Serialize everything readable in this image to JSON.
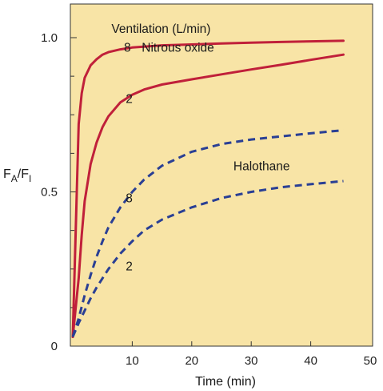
{
  "chart_data": {
    "type": "line",
    "xlabel": "Time (min)",
    "ylabel_main": "F",
    "ylabel_sub_a": "A",
    "ylabel_slash": "/F",
    "ylabel_sub_i": "I",
    "xlim": [
      0,
      50
    ],
    "ylim": [
      0,
      1.0
    ],
    "x_ticks": [
      {
        "value": 10,
        "label": "10"
      },
      {
        "value": 20,
        "label": "20"
      },
      {
        "value": 30,
        "label": "30"
      },
      {
        "value": 40,
        "label": "40"
      },
      {
        "value": 50,
        "label": "50"
      }
    ],
    "y_ticks": [
      {
        "value": 0,
        "label": "0"
      },
      {
        "value": 0.5,
        "label": "0.5"
      },
      {
        "value": 1.0,
        "label": "1.0"
      }
    ],
    "y_minor_ticks": [
      0.125,
      0.25,
      0.375,
      0.625,
      0.75,
      0.875
    ],
    "grid": false,
    "background_color": "#f8e4a6",
    "series": [
      {
        "label": "8",
        "style": "solid",
        "color": "#c0203a",
        "x": [
          0,
          1,
          1.5,
          2,
          3,
          4,
          5,
          6,
          8,
          10,
          15,
          20,
          25,
          30,
          35,
          40,
          45.5
        ],
        "y": [
          0.03,
          0.72,
          0.82,
          0.87,
          0.91,
          0.93,
          0.945,
          0.953,
          0.962,
          0.968,
          0.975,
          0.978,
          0.981,
          0.984,
          0.986,
          0.988,
          0.99
        ]
      },
      {
        "label": "2",
        "style": "solid",
        "color": "#c0203a",
        "x": [
          0,
          1,
          1.5,
          2,
          3,
          4,
          5,
          6,
          8,
          10,
          12,
          15,
          20,
          25,
          30,
          35,
          40,
          45.5
        ],
        "y": [
          0.03,
          0.22,
          0.36,
          0.47,
          0.59,
          0.66,
          0.71,
          0.745,
          0.79,
          0.815,
          0.832,
          0.848,
          0.865,
          0.881,
          0.897,
          0.912,
          0.928,
          0.945
        ]
      },
      {
        "label": "8",
        "style": "dashed",
        "color": "#2a3f94",
        "x": [
          0,
          1,
          2,
          3,
          4,
          5,
          6,
          8,
          10,
          12,
          15,
          20,
          25,
          30,
          35,
          40,
          45.5
        ],
        "y": [
          0.03,
          0.09,
          0.165,
          0.23,
          0.29,
          0.34,
          0.385,
          0.45,
          0.5,
          0.54,
          0.585,
          0.63,
          0.655,
          0.67,
          0.68,
          0.69,
          0.7
        ]
      },
      {
        "label": "2",
        "style": "dashed",
        "color": "#2a3f94",
        "x": [
          0,
          1,
          2,
          3,
          4,
          5,
          6,
          8,
          10,
          12,
          15,
          20,
          25,
          30,
          35,
          40,
          45.5
        ],
        "y": [
          0.03,
          0.075,
          0.115,
          0.155,
          0.19,
          0.22,
          0.25,
          0.3,
          0.34,
          0.375,
          0.41,
          0.45,
          0.48,
          0.5,
          0.515,
          0.525,
          0.535
        ]
      }
    ],
    "annotations": [
      {
        "text": "Ventilation (L/min)",
        "x": 6.5,
        "y": 1.015
      },
      {
        "text": "8",
        "x": 8.6,
        "y": 0.955
      },
      {
        "text": "Nitrous oxide",
        "x": 11.6,
        "y": 0.955
      },
      {
        "text": "2",
        "x": 8.9,
        "y": 0.788
      },
      {
        "text": "Halothane",
        "x": 27,
        "y": 0.57
      },
      {
        "text": "8",
        "x": 8.9,
        "y": 0.466
      },
      {
        "text": "2",
        "x": 8.9,
        "y": 0.246
      }
    ]
  }
}
